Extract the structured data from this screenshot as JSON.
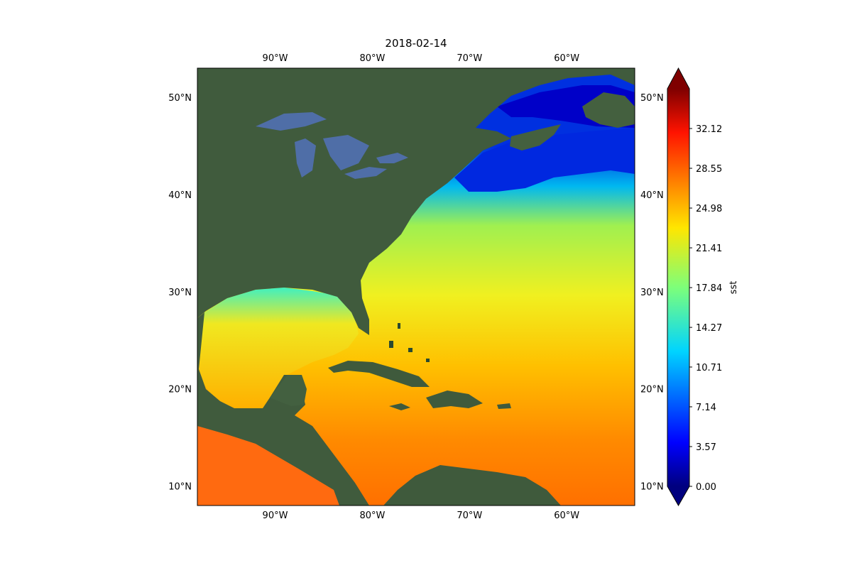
{
  "figure": {
    "title": "2018-02-14"
  },
  "map": {
    "lon_range": [
      -98,
      -53
    ],
    "lat_range": [
      8,
      53
    ],
    "lon_ticks": [
      {
        "value": -90,
        "label": "90°W"
      },
      {
        "value": -80,
        "label": "80°W"
      },
      {
        "value": -70,
        "label": "70°W"
      },
      {
        "value": -60,
        "label": "60°W"
      }
    ],
    "lat_ticks": [
      {
        "value": 50,
        "label": "50°N"
      },
      {
        "value": 40,
        "label": "40°N"
      },
      {
        "value": 30,
        "label": "30°N"
      },
      {
        "value": 20,
        "label": "20°N"
      },
      {
        "value": 10,
        "label": "10°N"
      }
    ],
    "colors": {
      "land": "#3f5a3c",
      "lakes": "#4e6ea8",
      "cold_shelf": "#0022dd",
      "cool": "#00b4f0",
      "mild": "#80f060",
      "warm": "#e6f020",
      "hot": "#ff8c00"
    }
  },
  "colorbar": {
    "label": "sst",
    "colormap": "jet",
    "extend": "both",
    "range": [
      0.0,
      35.69
    ],
    "ticks": [
      "0.00",
      "3.57",
      "7.14",
      "10.71",
      "14.27",
      "17.84",
      "21.41",
      "24.98",
      "28.55",
      "32.12"
    ]
  }
}
